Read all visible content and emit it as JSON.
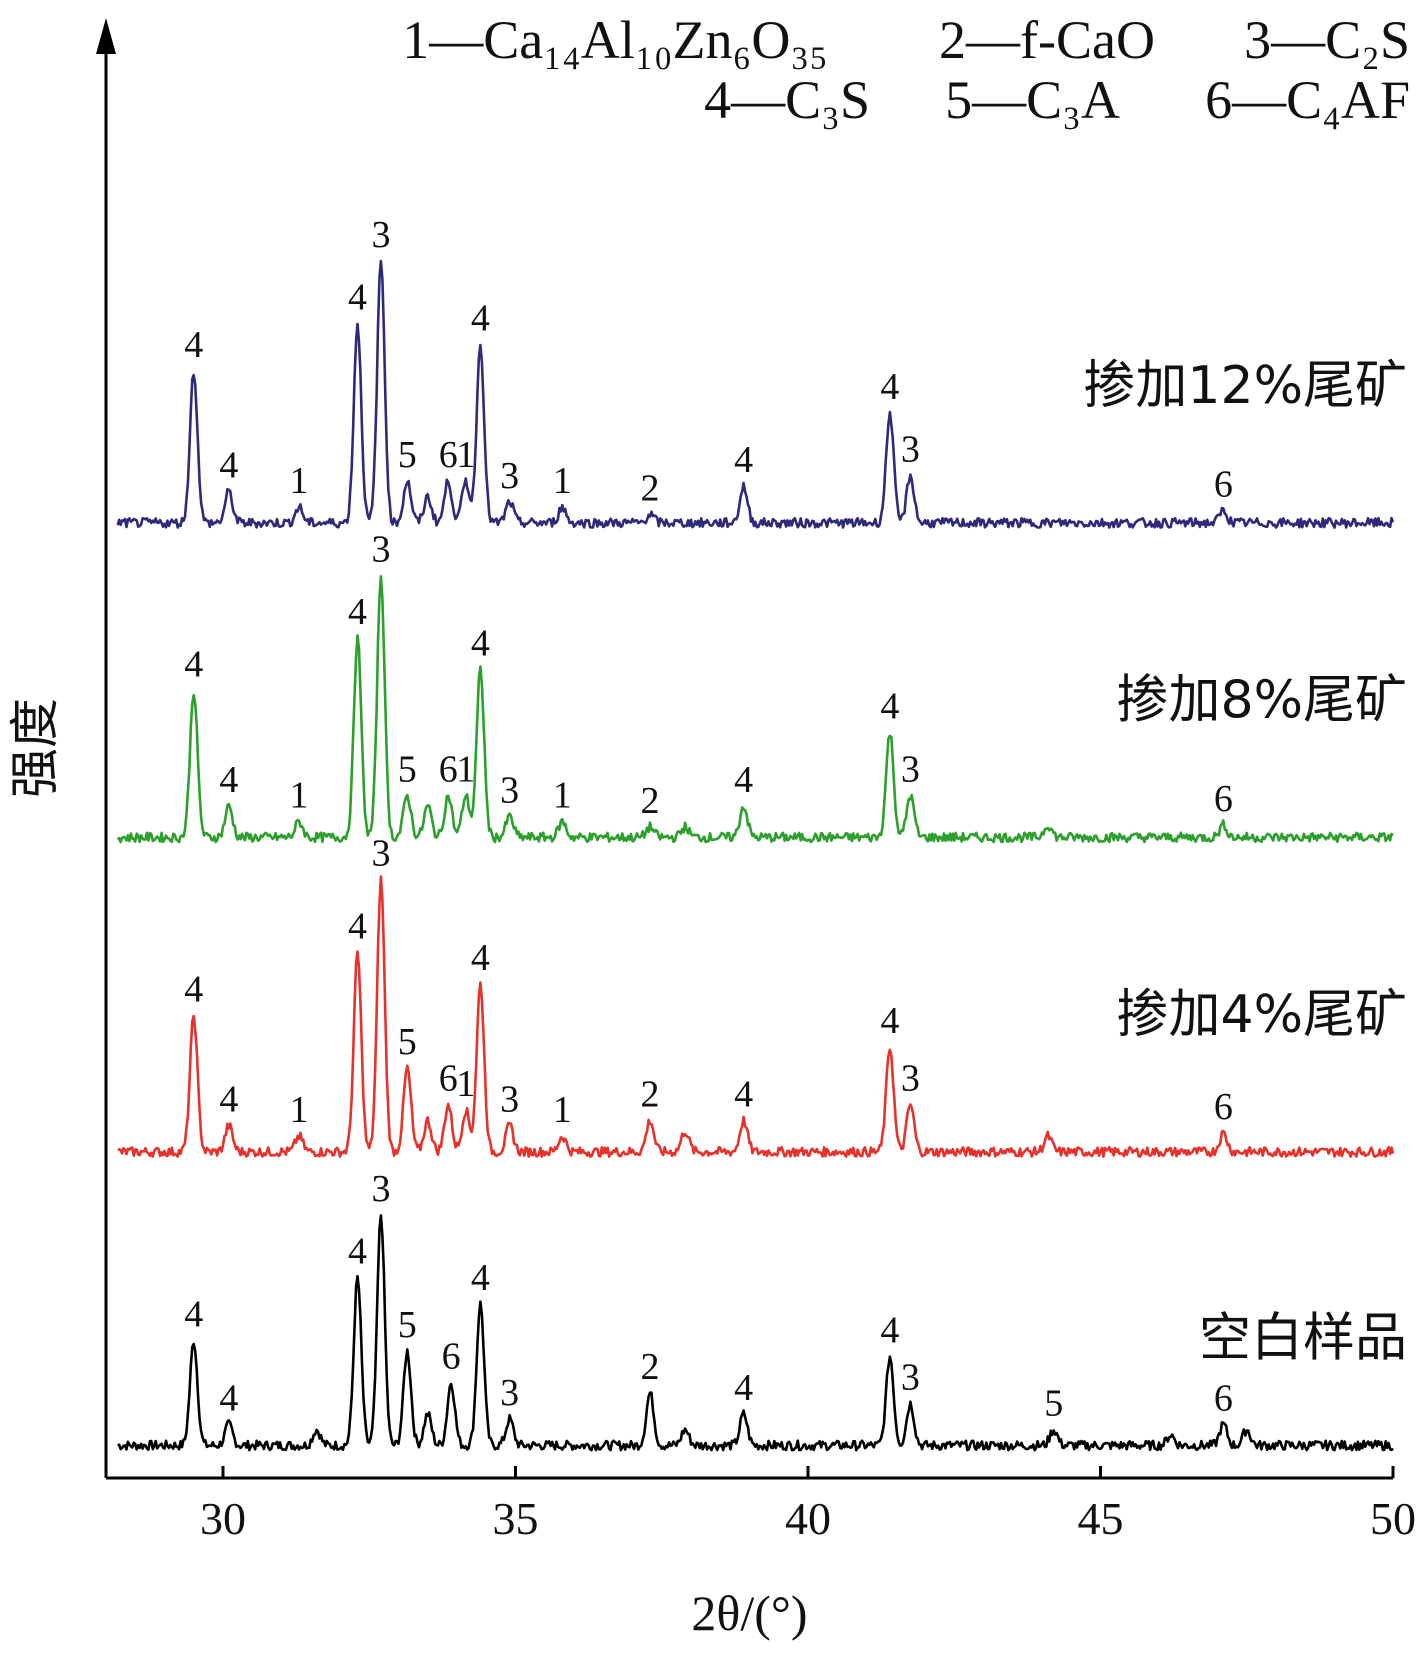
{
  "chart_data": {
    "type": "line",
    "title": "",
    "xlabel": "2θ/(°)",
    "ylabel": "强度",
    "xlim": [
      28,
      50
    ],
    "ylim": [
      0,
      120
    ],
    "x_ticks": [
      30,
      35,
      40,
      45,
      50
    ],
    "y_ticks_shown": false,
    "grid": false,
    "legend_position": "top-right",
    "phase_legend": [
      "1—Ca₁₄Al₁₀Zn₆O₃₅",
      "2—f-CaO",
      "3—C₂S",
      "4—C₃S",
      "5—C₃A",
      "6—C₄AF"
    ],
    "series": [
      {
        "name": "空白样品",
        "color": "#000000",
        "offset": 0,
        "peaks": [
          {
            "x": 29.5,
            "y": 10,
            "label": "4"
          },
          {
            "x": 30.1,
            "y": 2,
            "label": "4"
          },
          {
            "x": 31.6,
            "y": 1.5,
            "label": ""
          },
          {
            "x": 32.3,
            "y": 16,
            "label": "4"
          },
          {
            "x": 32.7,
            "y": 22,
            "label": "3"
          },
          {
            "x": 33.15,
            "y": 9,
            "label": "5"
          },
          {
            "x": 33.5,
            "y": 3,
            "label": ""
          },
          {
            "x": 33.9,
            "y": 6,
            "label": "6"
          },
          {
            "x": 34.4,
            "y": 13.5,
            "label": "4"
          },
          {
            "x": 34.9,
            "y": 2.5,
            "label": "3"
          },
          {
            "x": 37.3,
            "y": 5,
            "label": "2"
          },
          {
            "x": 37.9,
            "y": 1.5,
            "label": ""
          },
          {
            "x": 38.9,
            "y": 3,
            "label": "4"
          },
          {
            "x": 41.4,
            "y": 8.5,
            "label": "4"
          },
          {
            "x": 41.75,
            "y": 4,
            "label": "3"
          },
          {
            "x": 44.2,
            "y": 1.5,
            "label": "5"
          },
          {
            "x": 46.2,
            "y": 1,
            "label": ""
          },
          {
            "x": 47.1,
            "y": 2,
            "label": "6"
          },
          {
            "x": 47.5,
            "y": 1.5,
            "label": ""
          }
        ]
      },
      {
        "name": "掺加4%尾矿",
        "color": "#e8312b",
        "offset": 28,
        "peaks": [
          {
            "x": 29.5,
            "y": 13,
            "label": "4"
          },
          {
            "x": 30.1,
            "y": 2.5,
            "label": "4"
          },
          {
            "x": 31.3,
            "y": 1.5,
            "label": "1"
          },
          {
            "x": 32.3,
            "y": 19,
            "label": "4"
          },
          {
            "x": 32.7,
            "y": 26,
            "label": "3"
          },
          {
            "x": 33.15,
            "y": 8,
            "label": "5"
          },
          {
            "x": 33.5,
            "y": 3,
            "label": ""
          },
          {
            "x": 33.85,
            "y": 4.5,
            "label": "6"
          },
          {
            "x": 34.15,
            "y": 4,
            "label": "1"
          },
          {
            "x": 34.4,
            "y": 16,
            "label": "4"
          },
          {
            "x": 34.9,
            "y": 2.5,
            "label": "3"
          },
          {
            "x": 35.8,
            "y": 1.5,
            "label": "1"
          },
          {
            "x": 37.3,
            "y": 3,
            "label": "2"
          },
          {
            "x": 37.9,
            "y": 2,
            "label": ""
          },
          {
            "x": 38.9,
            "y": 3,
            "label": "4"
          },
          {
            "x": 41.4,
            "y": 10,
            "label": "4"
          },
          {
            "x": 41.75,
            "y": 4.5,
            "label": "3"
          },
          {
            "x": 44.1,
            "y": 1.5,
            "label": ""
          },
          {
            "x": 47.1,
            "y": 1.8,
            "label": "6"
          }
        ]
      },
      {
        "name": "掺加8%尾矿",
        "color": "#2ca02c",
        "offset": 58,
        "peaks": [
          {
            "x": 29.5,
            "y": 14,
            "label": "4"
          },
          {
            "x": 30.1,
            "y": 3,
            "label": "4"
          },
          {
            "x": 31.3,
            "y": 1.5,
            "label": "1"
          },
          {
            "x": 32.3,
            "y": 19,
            "label": "4"
          },
          {
            "x": 32.7,
            "y": 25,
            "label": "3"
          },
          {
            "x": 33.15,
            "y": 4,
            "label": "5"
          },
          {
            "x": 33.5,
            "y": 3,
            "label": ""
          },
          {
            "x": 33.85,
            "y": 4,
            "label": "6"
          },
          {
            "x": 34.15,
            "y": 4,
            "label": "1"
          },
          {
            "x": 34.4,
            "y": 16,
            "label": "4"
          },
          {
            "x": 34.9,
            "y": 2,
            "label": "3"
          },
          {
            "x": 35.8,
            "y": 1.5,
            "label": "1"
          },
          {
            "x": 37.3,
            "y": 1,
            "label": "2"
          },
          {
            "x": 37.9,
            "y": 1,
            "label": ""
          },
          {
            "x": 38.9,
            "y": 3,
            "label": "4"
          },
          {
            "x": 41.4,
            "y": 10,
            "label": "4"
          },
          {
            "x": 41.75,
            "y": 4,
            "label": "3"
          },
          {
            "x": 44.1,
            "y": 1.2,
            "label": ""
          },
          {
            "x": 47.1,
            "y": 1.2,
            "label": "6"
          }
        ]
      },
      {
        "name": "掺加12%尾矿",
        "color": "#2e2a7a",
        "offset": 88,
        "peaks": [
          {
            "x": 29.5,
            "y": 14.5,
            "label": "4"
          },
          {
            "x": 30.1,
            "y": 3,
            "label": "4"
          },
          {
            "x": 31.3,
            "y": 1.5,
            "label": "1"
          },
          {
            "x": 32.3,
            "y": 19,
            "label": "4"
          },
          {
            "x": 32.7,
            "y": 25,
            "label": "3"
          },
          {
            "x": 33.15,
            "y": 4,
            "label": "5"
          },
          {
            "x": 33.5,
            "y": 2.5,
            "label": ""
          },
          {
            "x": 33.85,
            "y": 4,
            "label": "6"
          },
          {
            "x": 34.15,
            "y": 4,
            "label": "1"
          },
          {
            "x": 34.4,
            "y": 17,
            "label": "4"
          },
          {
            "x": 34.9,
            "y": 2,
            "label": "3"
          },
          {
            "x": 35.8,
            "y": 1.5,
            "label": "1"
          },
          {
            "x": 37.3,
            "y": 0.8,
            "label": "2"
          },
          {
            "x": 38.9,
            "y": 3.5,
            "label": "4"
          },
          {
            "x": 41.4,
            "y": 10.5,
            "label": "4"
          },
          {
            "x": 41.75,
            "y": 4.5,
            "label": "3"
          },
          {
            "x": 47.1,
            "y": 1.2,
            "label": "6"
          }
        ]
      }
    ]
  }
}
